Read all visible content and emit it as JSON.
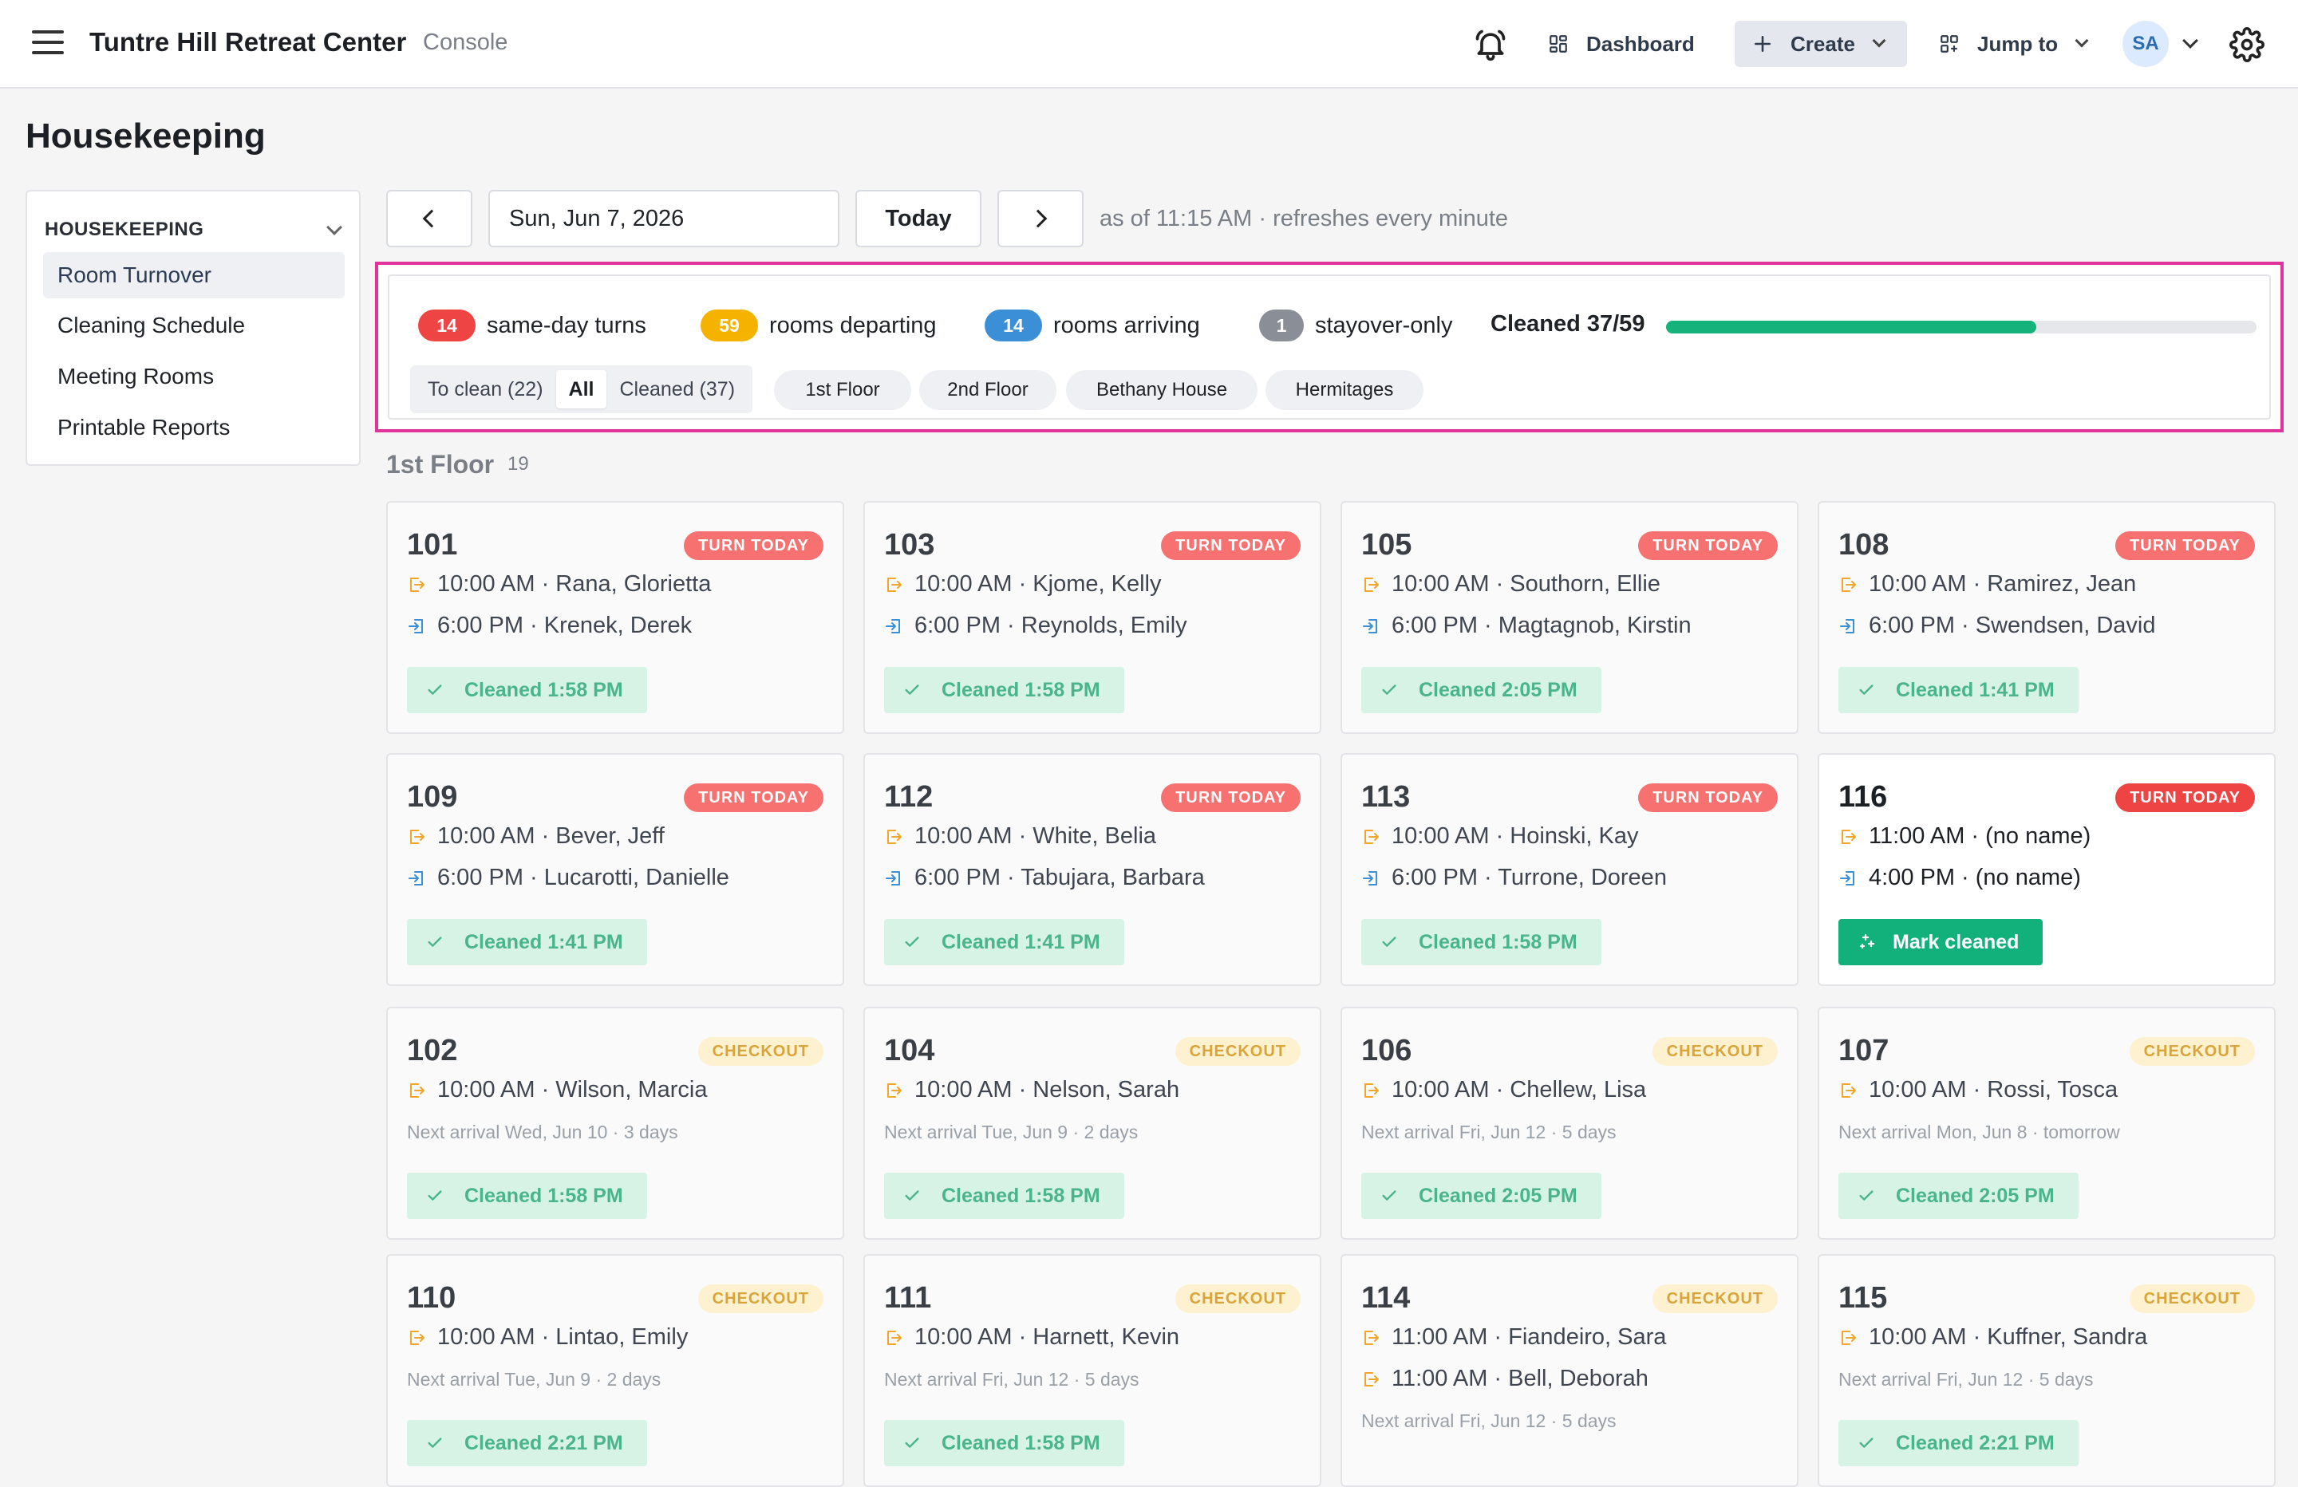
{
  "app": {
    "title": "Tuntre Hill Retreat Center",
    "subtitle": "Console"
  },
  "nav": {
    "dashboard": "Dashboard",
    "create": "Create",
    "jump_to": "Jump to",
    "avatar": "SA"
  },
  "page": {
    "title": "Housekeeping"
  },
  "sidebar": {
    "heading": "HOUSEKEEPING",
    "items": [
      {
        "label": "Room Turnover",
        "active": true
      },
      {
        "label": "Cleaning Schedule"
      },
      {
        "label": "Meeting Rooms"
      },
      {
        "label": "Printable Reports"
      }
    ]
  },
  "toolbar": {
    "date": "Sun, Jun 7, 2026",
    "today": "Today",
    "as_of": "as of 11:15 AM · refreshes every minute"
  },
  "summary": {
    "stats": [
      {
        "count": "14",
        "label": "same-day turns",
        "color": "#ef4444"
      },
      {
        "count": "59",
        "label": "rooms departing",
        "color": "#f5b300"
      },
      {
        "count": "14",
        "label": "rooms arriving",
        "color": "#3b8fd6"
      },
      {
        "count": "1",
        "label": "stayover-only",
        "color": "#8a8f97"
      }
    ],
    "cleaned_label": "Cleaned 37/59",
    "cleaned_done": 37,
    "cleaned_total": 59,
    "filters": [
      "To clean (22)",
      "All",
      "Cleaned (37)"
    ],
    "active_filter": "All",
    "chips": [
      "1st Floor",
      "2nd Floor",
      "Bethany House",
      "Hermitages"
    ]
  },
  "group": {
    "title": "1st Floor",
    "count": "19"
  },
  "colors": {
    "accent_green": "#12b07a",
    "turn_red": "#ef4444",
    "checkout_amber": "#d9a53a",
    "highlight_magenta": "#e0349b"
  },
  "cards": [
    {
      "room": "101",
      "badge": "TURN TODAY",
      "type": "turn",
      "out": "10:00 AM · Rana, Glorietta",
      "in": "6:00 PM · Krenek, Derek",
      "status": "Cleaned 1:58 PM"
    },
    {
      "room": "103",
      "badge": "TURN TODAY",
      "type": "turn",
      "out": "10:00 AM · Kjome, Kelly",
      "in": "6:00 PM · Reynolds, Emily",
      "status": "Cleaned 1:58 PM"
    },
    {
      "room": "105",
      "badge": "TURN TODAY",
      "type": "turn",
      "out": "10:00 AM · Southorn, Ellie",
      "in": "6:00 PM · Magtagnob, Kirstin",
      "status": "Cleaned 2:05 PM"
    },
    {
      "room": "108",
      "badge": "TURN TODAY",
      "type": "turn",
      "out": "10:00 AM · Ramirez, Jean",
      "in": "6:00 PM · Swendsen, David",
      "status": "Cleaned 1:41 PM"
    },
    {
      "room": "109",
      "badge": "TURN TODAY",
      "type": "turn",
      "out": "10:00 AM · Bever, Jeff",
      "in": "6:00 PM · Lucarotti, Danielle",
      "status": "Cleaned 1:41 PM"
    },
    {
      "room": "112",
      "badge": "TURN TODAY",
      "type": "turn",
      "out": "10:00 AM · White, Belia",
      "in": "6:00 PM · Tabujara, Barbara",
      "status": "Cleaned 1:41 PM"
    },
    {
      "room": "113",
      "badge": "TURN TODAY",
      "type": "turn",
      "out": "10:00 AM · Hoinski, Kay",
      "in": "6:00 PM · Turrone, Doreen",
      "status": "Cleaned 1:58 PM"
    },
    {
      "room": "116",
      "badge": "TURN TODAY",
      "type": "turn",
      "active": true,
      "out": "11:00 AM · (no name)",
      "in": "4:00 PM · (no name)",
      "action": "Mark cleaned"
    },
    {
      "room": "102",
      "badge": "CHECKOUT",
      "type": "checkout",
      "out": "10:00 AM · Wilson, Marcia",
      "next": "Next arrival Wed, Jun 10 · 3 days",
      "status": "Cleaned 1:58 PM"
    },
    {
      "room": "104",
      "badge": "CHECKOUT",
      "type": "checkout",
      "out": "10:00 AM · Nelson, Sarah",
      "next": "Next arrival Tue, Jun 9 · 2 days",
      "status": "Cleaned 1:58 PM"
    },
    {
      "room": "106",
      "badge": "CHECKOUT",
      "type": "checkout",
      "out": "10:00 AM · Chellew, Lisa",
      "next": "Next arrival Fri, Jun 12 · 5 days",
      "status": "Cleaned 2:05 PM"
    },
    {
      "room": "107",
      "badge": "CHECKOUT",
      "type": "checkout",
      "out": "10:00 AM · Rossi, Tosca",
      "next": "Next arrival Mon, Jun 8 · tomorrow",
      "status": "Cleaned 2:05 PM"
    },
    {
      "room": "110",
      "badge": "CHECKOUT",
      "type": "checkout",
      "out": "10:00 AM · Lintao, Emily",
      "next": "Next arrival Tue, Jun 9 · 2 days",
      "status": "Cleaned 2:21 PM"
    },
    {
      "room": "111",
      "badge": "CHECKOUT",
      "type": "checkout",
      "out": "10:00 AM · Harnett, Kevin",
      "next": "Next arrival Fri, Jun 12 · 5 days",
      "status": "Cleaned 1:58 PM"
    },
    {
      "room": "114",
      "badge": "CHECKOUT",
      "type": "checkout",
      "out": "11:00 AM · Fiandeiro, Sara",
      "out2": "11:00 AM · Bell, Deborah",
      "next": "Next arrival Fri, Jun 12 · 5 days"
    },
    {
      "room": "115",
      "badge": "CHECKOUT",
      "type": "checkout",
      "out": "10:00 AM · Kuffner, Sandra",
      "next": "Next arrival Fri, Jun 12 · 5 days",
      "status": "Cleaned 2:21 PM"
    }
  ]
}
